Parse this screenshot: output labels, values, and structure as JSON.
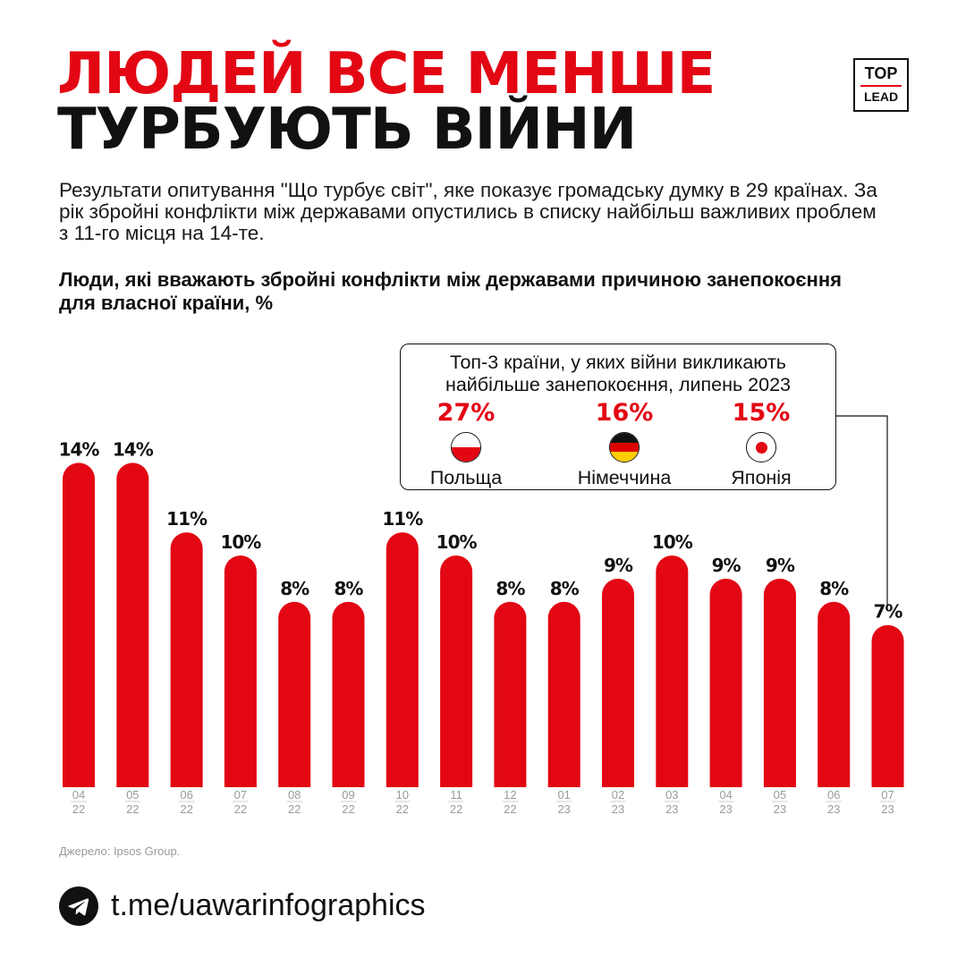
{
  "header": {
    "title_line1": "ЛЮДЕЙ ВСЕ МЕНШЕ",
    "title_line2": "ТУРБУЮТЬ ВІЙНИ",
    "logo_top": "TOP",
    "logo_bottom": "LEAD"
  },
  "description": "Результати опитування \"Що турбує світ\", яке показує громадську думку в 29 країнах. За рік збройні конфлікти між державами опустились в списку найбільш важливих проблем з 11-го місця на 14-те.",
  "chart_subtitle": "Люди, які вважають збройні конфлікти між державами причиною занепокоєння для власної країни, %",
  "callout": {
    "title": "Топ-3 країни, у яких війни викликають найбільше занепокоєння, липень 2023",
    "countries": [
      {
        "name": "Польща",
        "value": "27%",
        "icon": "poland-flag-icon"
      },
      {
        "name": "Німеччина",
        "value": "16%",
        "icon": "germany-flag-icon"
      },
      {
        "name": "Японія",
        "value": "15%",
        "icon": "japan-flag-icon"
      }
    ]
  },
  "chart_data": {
    "type": "bar",
    "categories": [
      "04 22",
      "05 22",
      "06 22",
      "07 22",
      "08 22",
      "09 22",
      "10 22",
      "11 22",
      "12 22",
      "01 23",
      "02 23",
      "03 23",
      "04 23",
      "05 23",
      "06 23",
      "07 23"
    ],
    "values": [
      14,
      14,
      11,
      10,
      8,
      8,
      11,
      10,
      8,
      8,
      9,
      10,
      9,
      9,
      8,
      7
    ],
    "value_suffix": "%",
    "bar_color": "#e30613",
    "title": "Люди, які вважають збройні конфлікти між державами причиною занепокоєння для власної країни, %",
    "grid": false
  },
  "footer": {
    "source": "Джерело: Ipsos Group.",
    "link": "t.me/uawarinfographics",
    "link_icon": "telegram-icon"
  },
  "colors": {
    "accent": "#e30613",
    "text": "#111111",
    "muted": "#9a9a9a"
  }
}
